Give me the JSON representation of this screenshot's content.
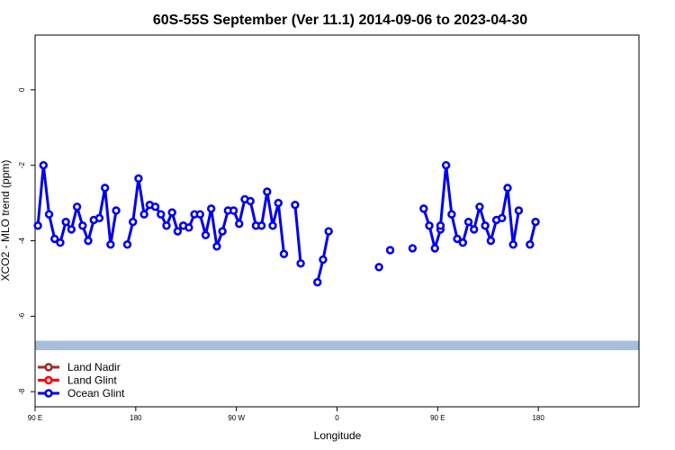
{
  "chart_data": {
    "type": "line",
    "title": "60S-55S September (Ver 11.1)   2014-09-06 to 2023-04-30",
    "xlabel": "Longitude",
    "ylabel": "XCO2 - MLO trend (ppm)",
    "xlim": [
      -90,
      450
    ],
    "ylim": [
      -8.4,
      1.45
    ],
    "x_ticks": [
      {
        "value": -90,
        "label": "90 E"
      },
      {
        "value": 0,
        "label": "180"
      },
      {
        "value": 90,
        "label": "90 W"
      },
      {
        "value": 180,
        "label": "0"
      },
      {
        "value": 270,
        "label": "90 E"
      },
      {
        "value": 360,
        "label": "180"
      }
    ],
    "y_ticks": [
      {
        "value": 0,
        "label": "0"
      },
      {
        "value": -2,
        "label": "-2"
      },
      {
        "value": -4,
        "label": "-4"
      },
      {
        "value": -6,
        "label": "-6"
      },
      {
        "value": -8,
        "label": "-8"
      }
    ],
    "band": {
      "y_low": -6.9,
      "y_high": -6.65,
      "color": "#a6bddb"
    },
    "legend": {
      "position": "bottom-left",
      "entries": [
        {
          "name": "Land Nadir",
          "color": "#9e2a2a"
        },
        {
          "name": "Land Glint",
          "color": "#ff0000"
        },
        {
          "name": "Ocean Glint",
          "color": "#0000ee"
        }
      ]
    },
    "series": [
      {
        "name": "Ocean Glint",
        "color": "#0000ee",
        "segments": [
          [
            [
              -87.5,
              -3.6
            ],
            [
              -82.5,
              -2.0
            ],
            [
              -77.5,
              -3.3
            ],
            [
              -72.5,
              -3.95
            ],
            [
              -67.5,
              -4.05
            ],
            [
              -62.5,
              -3.5
            ],
            [
              -57.5,
              -3.7
            ],
            [
              -52.5,
              -3.1
            ],
            [
              -47.5,
              -3.6
            ],
            [
              -42.5,
              -4.0
            ],
            [
              -37.5,
              -3.45
            ],
            [
              -32.5,
              -3.4
            ],
            [
              -27.5,
              -2.6
            ],
            [
              -22.5,
              -4.1
            ],
            [
              -17.5,
              -3.2
            ]
          ],
          [
            [
              -7.5,
              -4.1
            ],
            [
              -2.5,
              -3.5
            ],
            [
              2.5,
              -2.35
            ],
            [
              7.5,
              -3.3
            ],
            [
              12.5,
              -3.05
            ],
            [
              17.5,
              -3.1
            ],
            [
              22.5,
              -3.3
            ],
            [
              27.5,
              -3.6
            ],
            [
              32.5,
              -3.25
            ],
            [
              37.5,
              -3.75
            ],
            [
              42.5,
              -3.6
            ],
            [
              47.5,
              -3.65
            ],
            [
              52.5,
              -3.3
            ],
            [
              57.5,
              -3.3
            ],
            [
              62.5,
              -3.85
            ],
            [
              67.5,
              -3.15
            ],
            [
              72.5,
              -4.15
            ],
            [
              77.5,
              -3.75
            ],
            [
              82.5,
              -3.2
            ],
            [
              87.5,
              -3.2
            ],
            [
              92.5,
              -3.55
            ],
            [
              97.5,
              -2.9
            ],
            [
              102.5,
              -2.95
            ],
            [
              107.5,
              -3.6
            ],
            [
              112.5,
              -3.6
            ],
            [
              117.5,
              -2.7
            ],
            [
              122.5,
              -3.6
            ],
            [
              127.5,
              -3.0
            ],
            [
              132.5,
              -4.35
            ]
          ],
          [
            [
              142.5,
              -3.05
            ],
            [
              147.5,
              -4.6
            ]
          ],
          [
            [
              162.5,
              -5.1
            ],
            [
              167.5,
              -4.5
            ],
            [
              172.5,
              -3.75
            ]
          ],
          [
            [
              217.5,
              -4.7
            ]
          ],
          [
            [
              227.5,
              -4.25
            ]
          ],
          [
            [
              247.5,
              -4.2
            ]
          ],
          [
            [
              257.5,
              -3.15
            ],
            [
              262.5,
              -3.6
            ],
            [
              267.5,
              -4.2
            ],
            [
              272.5,
              -3.7
            ]
          ],
          [
            [
              272.5,
              -3.6
            ],
            [
              277.5,
              -2.0
            ],
            [
              282.5,
              -3.3
            ],
            [
              287.5,
              -3.95
            ],
            [
              292.5,
              -4.05
            ],
            [
              297.5,
              -3.5
            ],
            [
              302.5,
              -3.7
            ],
            [
              307.5,
              -3.1
            ],
            [
              312.5,
              -3.6
            ],
            [
              317.5,
              -4.0
            ],
            [
              322.5,
              -3.45
            ],
            [
              327.5,
              -3.4
            ],
            [
              332.5,
              -2.6
            ],
            [
              337.5,
              -4.1
            ],
            [
              342.5,
              -3.2
            ]
          ],
          [
            [
              352.5,
              -4.1
            ],
            [
              357.5,
              -3.5
            ]
          ]
        ]
      }
    ]
  }
}
